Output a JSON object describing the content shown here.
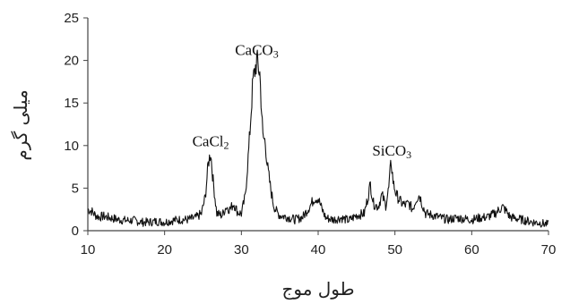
{
  "chart_data": {
    "type": "line",
    "title": "",
    "xlabel": "طول موج",
    "ylabel": "میلی گرم",
    "xlim": [
      10,
      70
    ],
    "ylim": [
      0,
      25
    ],
    "x_ticks": [
      "10",
      "20",
      "30",
      "40",
      "50",
      "60",
      "70"
    ],
    "y_ticks": [
      "0",
      "5",
      "10",
      "15",
      "20",
      "25"
    ],
    "grid": false,
    "legend": "none",
    "line_color": "#111111",
    "series": [
      {
        "x": [
          10,
          10.5,
          11,
          11.5,
          12,
          13,
          14,
          15,
          16,
          17,
          18,
          19,
          20,
          21,
          22,
          23,
          24,
          24.8,
          25.3,
          25.7,
          26,
          26.3,
          26.8,
          27.5,
          28,
          28.5,
          29,
          29.5,
          30,
          30.5,
          31,
          31.5,
          32,
          32.4,
          32.8,
          33.1,
          33.4,
          33.8,
          34.2,
          34.6,
          35,
          36,
          37,
          38,
          39,
          39.5,
          40,
          40.5,
          41,
          42,
          43,
          44,
          45,
          46,
          46.5,
          46.8,
          47.2,
          47.8,
          48.3,
          48.8,
          49.2,
          49.5,
          49.8,
          50.2,
          50.8,
          51.3,
          51.8,
          52.3,
          52.8,
          53.2,
          53.6,
          54,
          55,
          56,
          57,
          58,
          59,
          60,
          61,
          62,
          63,
          63.5,
          64,
          64.5,
          65,
          66,
          67,
          68,
          69,
          70
        ],
        "y": [
          2.5,
          2.3,
          1.8,
          1.6,
          1.7,
          1.5,
          1.3,
          1.2,
          1.2,
          1.0,
          1.0,
          1.1,
          1.0,
          1.2,
          1.3,
          1.3,
          1.5,
          2.0,
          4.0,
          8.0,
          9.2,
          6.0,
          2.0,
          1.8,
          2.8,
          2.5,
          3.2,
          2.2,
          2.0,
          4.0,
          10.0,
          17.5,
          20.0,
          18.5,
          11.0,
          10.5,
          7.5,
          5.0,
          3.0,
          2.2,
          1.8,
          1.6,
          1.3,
          1.6,
          3.0,
          3.8,
          3.8,
          2.5,
          1.5,
          1.3,
          1.5,
          1.2,
          1.8,
          2.0,
          4.0,
          5.5,
          3.2,
          2.8,
          4.2,
          3.0,
          5.0,
          8.2,
          5.5,
          4.2,
          3.3,
          3.0,
          3.2,
          2.5,
          3.8,
          4.2,
          3.0,
          2.0,
          1.8,
          1.5,
          1.3,
          1.5,
          1.4,
          1.3,
          1.5,
          1.6,
          2.0,
          2.4,
          2.8,
          2.3,
          1.6,
          1.4,
          1.2,
          1.0,
          0.9,
          0.7
        ]
      }
    ],
    "annotations": [
      {
        "formula": "CaCl",
        "subscript": "2",
        "x": 26,
        "y": 9.3
      },
      {
        "formula": "CaCO",
        "subscript": "3",
        "x": 32,
        "y": 20.0
      },
      {
        "formula": "SiCO",
        "subscript": "3",
        "x": 49.6,
        "y": 8.2
      }
    ]
  }
}
